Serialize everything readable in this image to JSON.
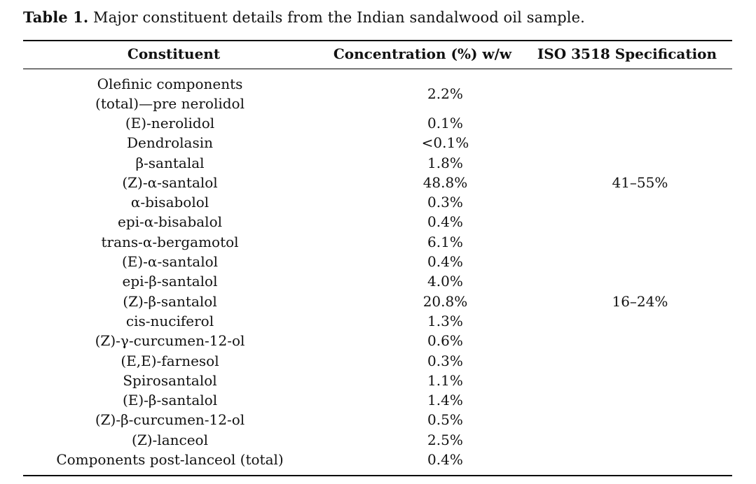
{
  "caption": {
    "label": "Table 1.",
    "text": " Major constituent details from the Indian sandalwood oil sample."
  },
  "table": {
    "headers": [
      "Constituent",
      "Concentration (%) w/w",
      "ISO 3518 Specification"
    ],
    "rows": [
      {
        "constituent": "Olefinic components (total)—pre nerolidol",
        "line1": "Olefinic components",
        "line2": "(total)—pre nerolidol",
        "concentration": "2.2%",
        "iso": ""
      },
      {
        "constituent": "(E)-nerolidol",
        "concentration": "0.1%",
        "iso": ""
      },
      {
        "constituent": "Dendrolasin",
        "concentration": "<0.1%",
        "iso": ""
      },
      {
        "constituent": "β-santalal",
        "concentration": "1.8%",
        "iso": ""
      },
      {
        "constituent": "(Z)-α-santalol",
        "concentration": "48.8%",
        "iso": "41–55%"
      },
      {
        "constituent": "α-bisabolol",
        "concentration": "0.3%",
        "iso": ""
      },
      {
        "constituent": "epi-α-bisabalol",
        "concentration": "0.4%",
        "iso": ""
      },
      {
        "constituent": "trans-α-bergamotol",
        "concentration": "6.1%",
        "iso": ""
      },
      {
        "constituent": "(E)-α-santalol",
        "concentration": "0.4%",
        "iso": ""
      },
      {
        "constituent": "epi-β-santalol",
        "concentration": "4.0%",
        "iso": ""
      },
      {
        "constituent": "(Z)-β-santalol",
        "concentration": "20.8%",
        "iso": "16–24%"
      },
      {
        "constituent": "cis-nuciferol",
        "concentration": "1.3%",
        "iso": ""
      },
      {
        "constituent": "(Z)-γ-curcumen-12-ol",
        "concentration": "0.6%",
        "iso": ""
      },
      {
        "constituent": "(E,E)-farnesol",
        "concentration": "0.3%",
        "iso": ""
      },
      {
        "constituent": "Spirosantalol",
        "concentration": "1.1%",
        "iso": ""
      },
      {
        "constituent": "(E)-β-santalol",
        "concentration": "1.4%",
        "iso": ""
      },
      {
        "constituent": "(Z)-β-curcumen-12-ol",
        "concentration": "0.5%",
        "iso": ""
      },
      {
        "constituent": "(Z)-lanceol",
        "concentration": "2.5%",
        "iso": ""
      },
      {
        "constituent": "Components post-lanceol (total)",
        "concentration": "0.4%",
        "iso": ""
      }
    ]
  }
}
